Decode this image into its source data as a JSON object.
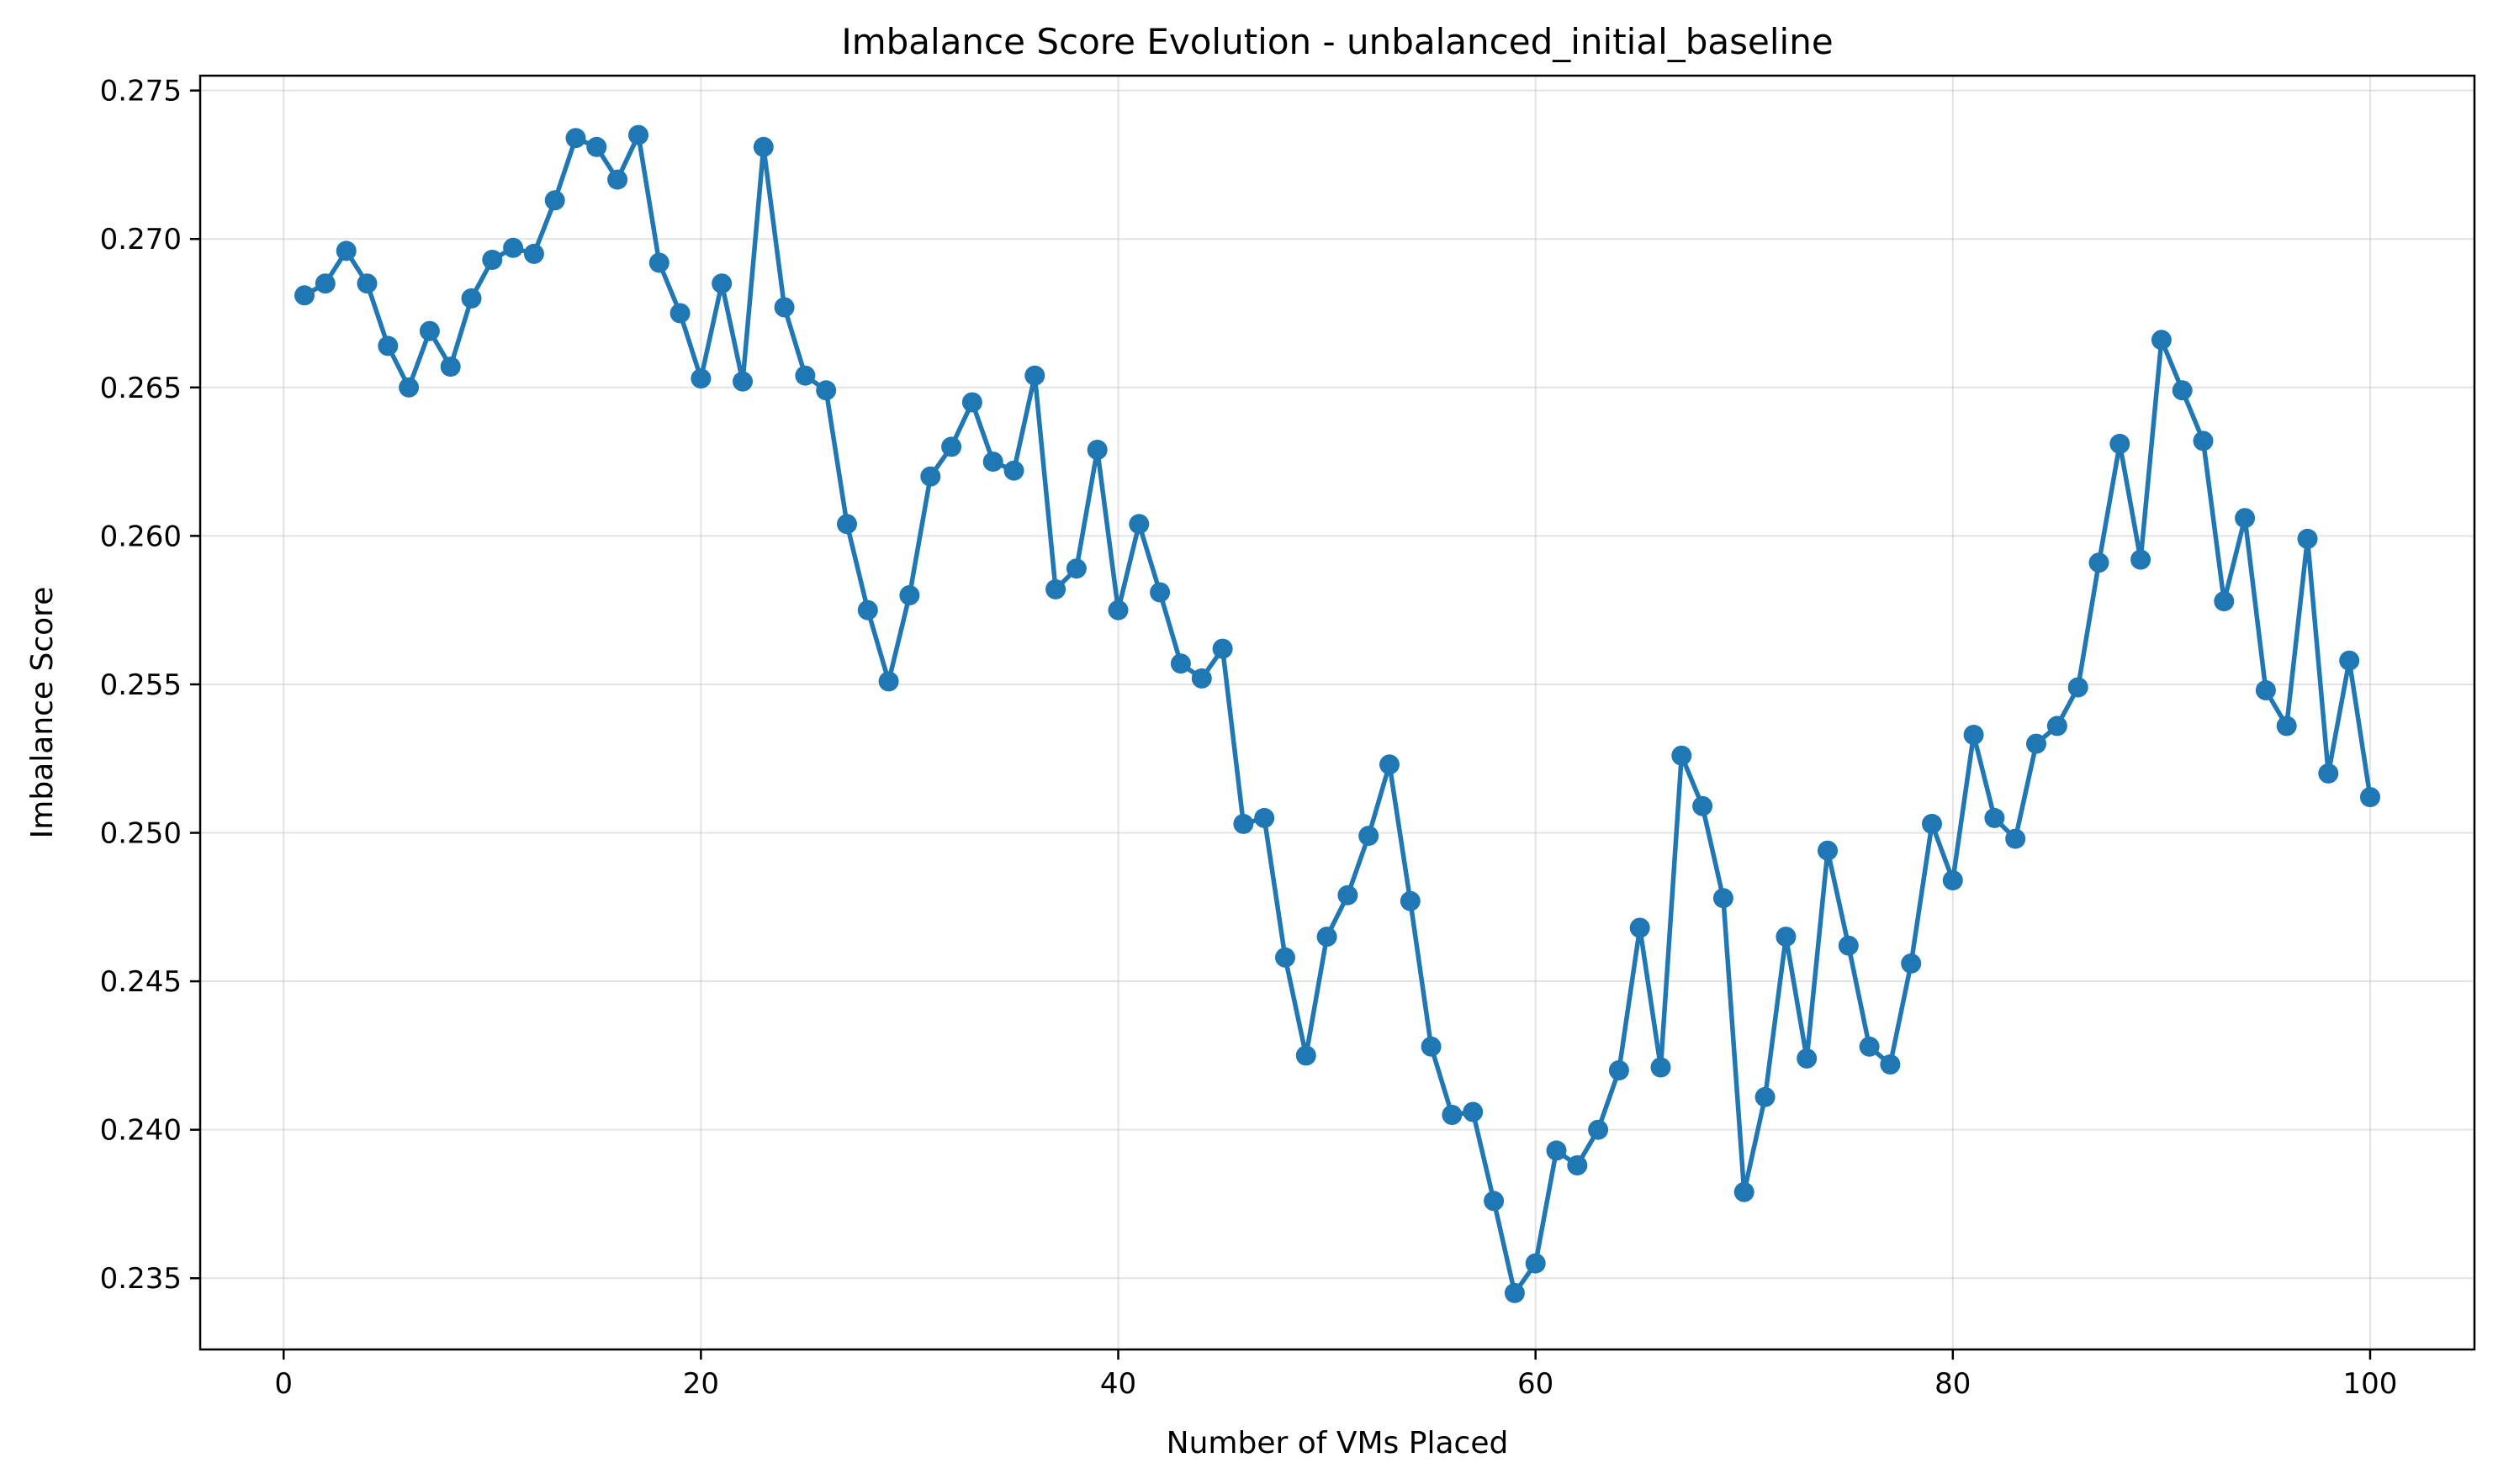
{
  "chart_data": {
    "type": "line",
    "title": "Imbalance Score Evolution - unbalanced_initial_baseline",
    "xlabel": "Number of VMs Placed",
    "ylabel": "Imbalance Score",
    "xlim": [
      -4,
      105
    ],
    "ylim": [
      0.2326,
      0.2755
    ],
    "xticks": [
      0,
      20,
      40,
      60,
      80,
      100
    ],
    "xtick_labels": [
      "0",
      "20",
      "40",
      "60",
      "80",
      "100"
    ],
    "yticks": [
      0.235,
      0.24,
      0.245,
      0.25,
      0.255,
      0.26,
      0.265,
      0.27,
      0.275
    ],
    "ytick_labels": [
      "0.235",
      "0.240",
      "0.245",
      "0.250",
      "0.255",
      "0.260",
      "0.265",
      "0.270",
      "0.275"
    ],
    "grid": true,
    "marker": "circle",
    "color": "#1f77b4",
    "series": [
      {
        "x": [
          1,
          2,
          3,
          4,
          5,
          6,
          7,
          8,
          9,
          10,
          11,
          12,
          13,
          14,
          15,
          16,
          17,
          18,
          19,
          20,
          21,
          22,
          23,
          24,
          25,
          26,
          27,
          28,
          29,
          30,
          31,
          32,
          33,
          34,
          35,
          36,
          37,
          38,
          39,
          40,
          41,
          42,
          43,
          44,
          45,
          46,
          47,
          48,
          49,
          50,
          51,
          52,
          53,
          54,
          55,
          56,
          57,
          58,
          59,
          60,
          61,
          62,
          63,
          64,
          65,
          66,
          67,
          68,
          69,
          70,
          71,
          72,
          73,
          74,
          75,
          76,
          77,
          78,
          79,
          80,
          81,
          82,
          83,
          84,
          85,
          86,
          87,
          88,
          89,
          90,
          91,
          92,
          93,
          94,
          95,
          96,
          97,
          98,
          99,
          100
        ],
        "values": [
          0.2681,
          0.2685,
          0.2696,
          0.2685,
          0.2664,
          0.265,
          0.2669,
          0.2657,
          0.268,
          0.2693,
          0.2697,
          0.2695,
          0.2713,
          0.2734,
          0.2731,
          0.272,
          0.2735,
          0.2692,
          0.2675,
          0.2653,
          0.2685,
          0.2652,
          0.2731,
          0.2677,
          0.2654,
          0.2649,
          0.2604,
          0.2575,
          0.2551,
          0.258,
          0.262,
          0.263,
          0.2645,
          0.2625,
          0.2622,
          0.2654,
          0.2582,
          0.2589,
          0.2629,
          0.2575,
          0.2604,
          0.2581,
          0.2557,
          0.2552,
          0.2562,
          0.2503,
          0.2505,
          0.2458,
          0.2425,
          0.2465,
          0.2479,
          0.2499,
          0.2523,
          0.2477,
          0.2428,
          0.2405,
          0.2406,
          0.2376,
          0.2345,
          0.2355,
          0.2393,
          0.2388,
          0.24,
          0.242,
          0.2468,
          0.2421,
          0.2526,
          0.2509,
          0.2478,
          0.2379,
          0.2411,
          0.2465,
          0.2424,
          0.2494,
          0.2462,
          0.2428,
          0.2422,
          0.2456,
          0.2503,
          0.2484,
          0.2533,
          0.2505,
          0.2498,
          0.253,
          0.2536,
          0.2549,
          0.2591,
          0.2631,
          0.2592,
          0.2666,
          0.2649,
          0.2632,
          0.2578,
          0.2606,
          0.2548,
          0.2536,
          0.2599,
          0.252,
          0.2558,
          0.2512
        ]
      }
    ]
  }
}
